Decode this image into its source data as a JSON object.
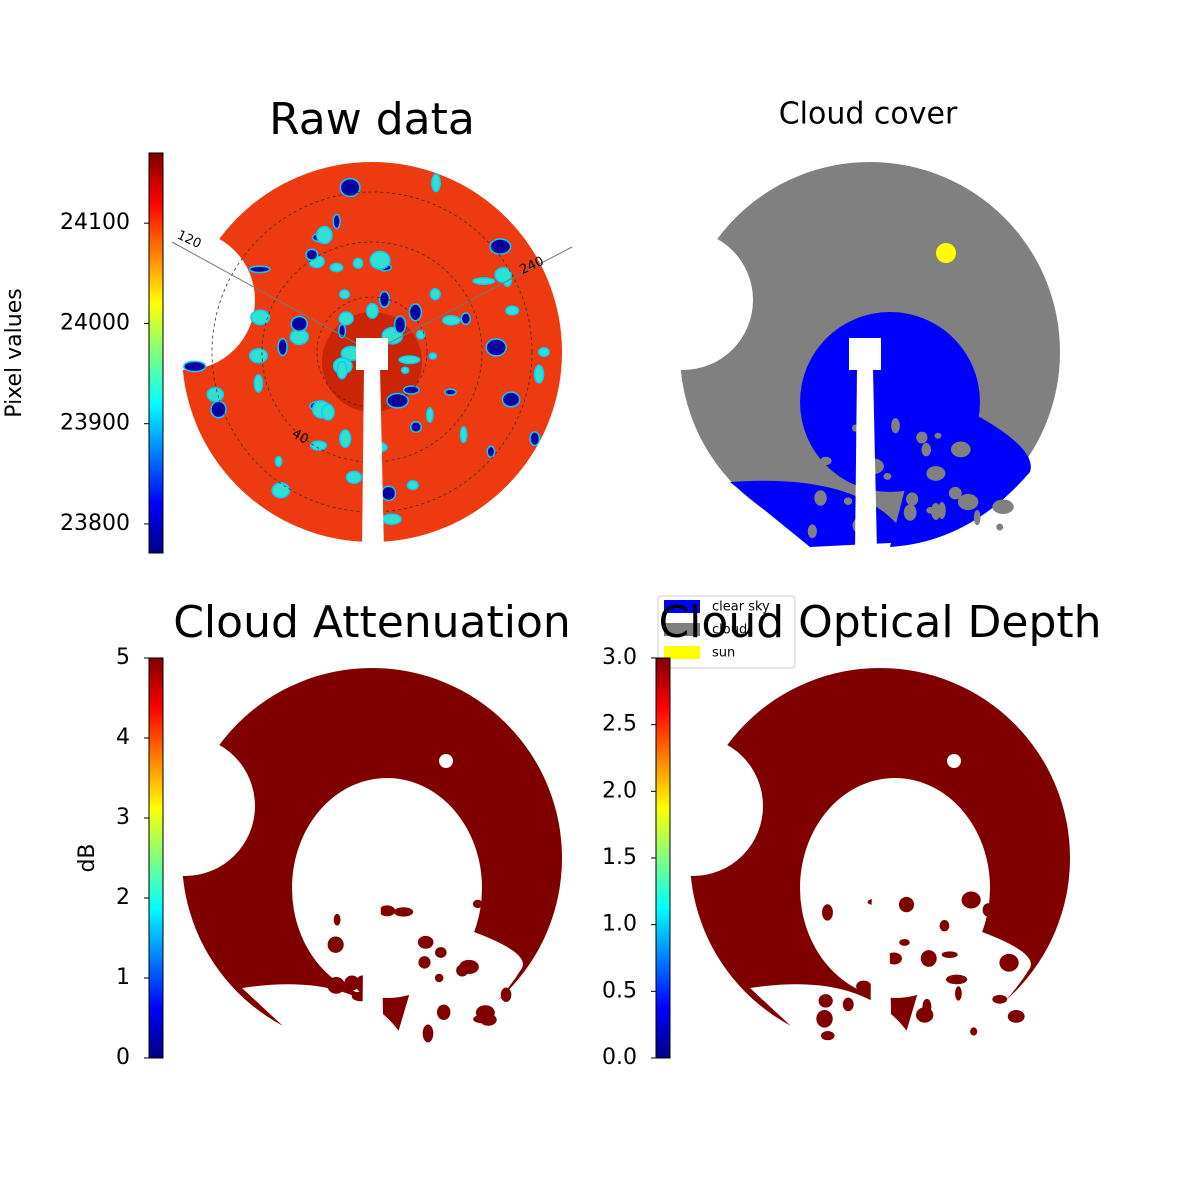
{
  "chart_data": [
    {
      "type": "image",
      "title": "Raw data",
      "colorbar": {
        "label": "Pixel values",
        "colormap": "jet",
        "lim": [
          23771,
          24170
        ],
        "ticks": [
          23800,
          23900,
          24000,
          24100
        ]
      },
      "polar_labels": [
        "120",
        "240",
        "40"
      ]
    },
    {
      "type": "image",
      "title": "Cloud cover",
      "legend": {
        "series": [
          {
            "name": "clear sky",
            "color": "#0000ff"
          },
          {
            "name": "cloud",
            "color": "#808080"
          },
          {
            "name": "sun",
            "color": "#ffff00"
          }
        ]
      }
    },
    {
      "type": "image",
      "title": "Cloud Attenuation",
      "colorbar": {
        "label": "dB",
        "colormap": "jet",
        "lim": [
          0,
          5
        ],
        "ticks": [
          0,
          1,
          2,
          3,
          4,
          5
        ]
      }
    },
    {
      "type": "image",
      "title": "Cloud Optical Depth",
      "colorbar": {
        "colormap": "jet",
        "lim": [
          0,
          3
        ],
        "ticks": [
          {
            "value": 0,
            "label": "0.0"
          },
          {
            "value": 0.5,
            "label": "0.5"
          },
          {
            "value": 1,
            "label": "1.0"
          },
          {
            "value": 1.5,
            "label": "1.5"
          },
          {
            "value": 2,
            "label": "2.0"
          },
          {
            "value": 2.5,
            "label": "2.5"
          },
          {
            "value": 3,
            "label": "3.0"
          }
        ]
      }
    }
  ]
}
